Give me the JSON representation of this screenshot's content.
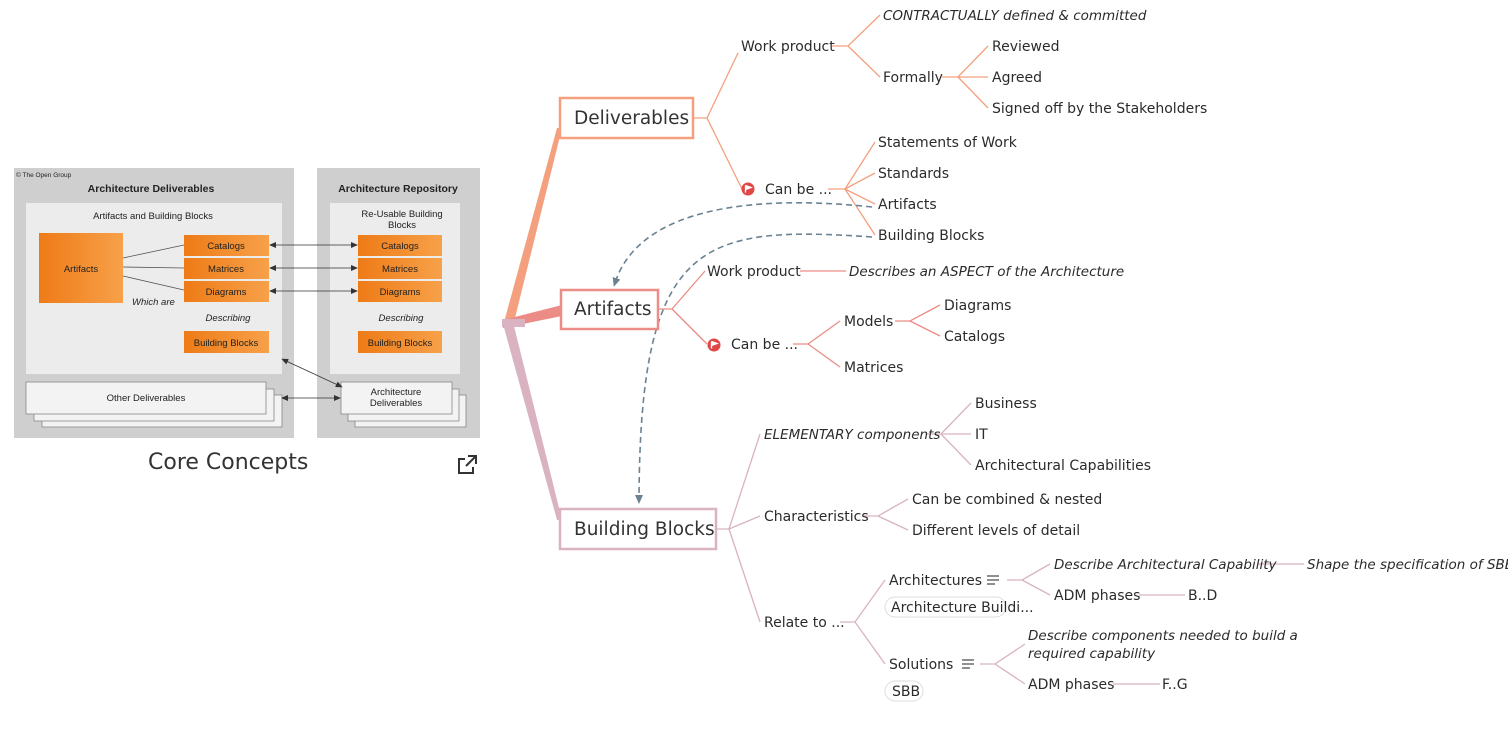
{
  "image": {
    "copyright": "© The Open Group",
    "left_title": "Architecture Deliverables",
    "right_title": "Architecture Repository",
    "inner_left_title": "Artifacts and Building Blocks",
    "inner_right_title_1": "Re-Usable Building",
    "inner_right_title_2": "Blocks",
    "artifacts": "Artifacts",
    "catalogs": "Catalogs",
    "matrices": "Matrices",
    "diagrams": "Diagrams",
    "which_are": "Which are",
    "describing": "Describing",
    "building_blocks": "Building Blocks",
    "other_deliverables": "Other Deliverables",
    "arch_deliverables_1": "Architecture",
    "arch_deliverables_2": "Deliverables"
  },
  "caption": "Core Concepts",
  "external_link_icon": "external-link-icon",
  "colors": {
    "deliverables": "#f4a07e",
    "artifacts": "#ec8c86",
    "building_blocks": "#d9b3c2",
    "connector": "#6b8293",
    "orange": "#f08a2c"
  },
  "deliverables": {
    "label": "Deliverables",
    "work_product": "Work product",
    "contractually": "CONTRACTUALLY defined & committed",
    "formally": "Formally",
    "reviewed": "Reviewed",
    "agreed": "Agreed",
    "signed_off": "Signed off by the Stakeholders",
    "can_be": "Can be ...",
    "statements": "Statements of Work",
    "standards": "Standards",
    "artifacts": "Artifacts",
    "building_blocks": "Building Blocks"
  },
  "artifacts": {
    "label": "Artifacts",
    "work_product": "Work product",
    "describes": "Describes an ASPECT of the Architecture",
    "can_be": "Can be ...",
    "models": "Models",
    "diagrams": "Diagrams",
    "catalogs": "Catalogs",
    "matrices": "Matrices"
  },
  "building_blocks": {
    "label": "Building Blocks",
    "elementary": "ELEMENTARY components",
    "business": "Business",
    "it": "IT",
    "arch_capabilities": "Architectural Capabilities",
    "characteristics": "Characteristics",
    "combined": "Can be combined & nested",
    "levels": "Different levels of detail",
    "relate_to": "Relate to ...",
    "architectures": "Architectures",
    "arch_tag": "Architecture Buildi...",
    "describe_arch_cap": "Describe Architectural Capability",
    "shape_spec": "Shape the specification of SBBs",
    "adm_phases_1": "ADM phases",
    "b_d": "B..D",
    "solutions": "Solutions",
    "sbb_tag": "SBB",
    "describe_components_1": "Describe components needed to build a",
    "describe_components_2": "required capability",
    "adm_phases_2": "ADM phases",
    "f_g": "F..G"
  }
}
